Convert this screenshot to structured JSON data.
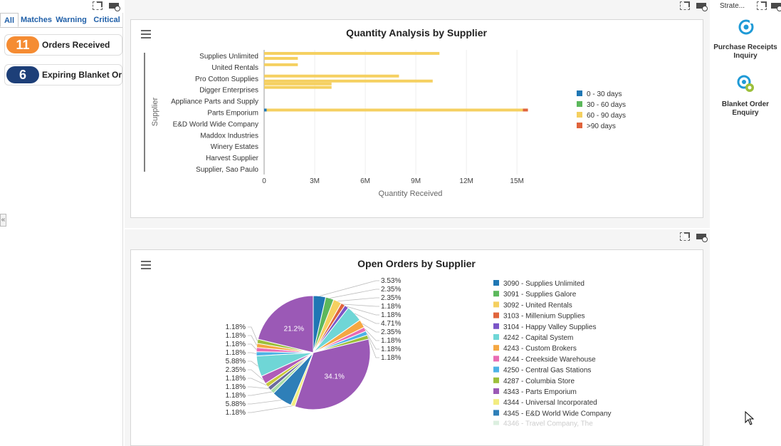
{
  "left_panel": {
    "tabs": [
      {
        "label": "All",
        "active": true
      },
      {
        "label": "Matches"
      },
      {
        "label": "Warning"
      },
      {
        "label": "Critical"
      }
    ],
    "kpis": [
      {
        "value": "11",
        "label": "Orders Received",
        "color": "#f58c33"
      },
      {
        "value": "6",
        "label": "Expiring Blanket Orders",
        "color": "#1d3f78"
      }
    ],
    "collapse_icon": "double-chevron-left-icon"
  },
  "right_panel": {
    "header": "Strate...",
    "apps": [
      {
        "label": "Purchase Receipts Inquiry",
        "icon": "purchase-receipts-icon"
      },
      {
        "label": "Blanket Order Enquiry",
        "icon": "blanket-order-icon"
      }
    ]
  },
  "chart_data": [
    {
      "type": "bar",
      "orientation": "horizontal",
      "stacked": true,
      "title": "Quantity Analysis by Supplier",
      "xlabel": "Quantity Received",
      "ylabel": "Supplier",
      "xlim": [
        0,
        15500000
      ],
      "xticks": [
        {
          "value": 0,
          "label": "0"
        },
        {
          "value": 3000000,
          "label": "3M"
        },
        {
          "value": 6000000,
          "label": "6M"
        },
        {
          "value": 9000000,
          "label": "9M"
        },
        {
          "value": 12000000,
          "label": "12M"
        },
        {
          "value": 15000000,
          "label": "15M"
        }
      ],
      "categories": [
        "Supplies Unlimited",
        "United Rentals",
        "Pro Cotton Supplies",
        "Digger Enterprises",
        "Appliance Parts and Supply",
        "Parts Emporium",
        "E&D World Wide Company",
        "Maddox Industries",
        "Winery Estates",
        "Harvest Supplier",
        "Supplier, Sao Paulo"
      ],
      "series": [
        {
          "name": "0 - 30 days",
          "color": "#1f77b4",
          "values": [
            0,
            0,
            0,
            0,
            0,
            150000,
            0,
            0,
            0,
            0,
            0
          ]
        },
        {
          "name": "30 - 60 days",
          "color": "#5cb85c",
          "values": [
            0,
            0,
            0,
            0,
            0,
            0,
            0,
            0,
            0,
            0,
            0
          ]
        },
        {
          "name": "60 - 90 days",
          "color": "#f5d060",
          "values": [
            10400000,
            2000000,
            8000000,
            4000000,
            0,
            15200000,
            0,
            0,
            0,
            0,
            0
          ]
        },
        {
          "name": ">90 days",
          "color": "#e0643c",
          "values": [
            0,
            0,
            0,
            0,
            0,
            300000,
            0,
            0,
            0,
            0,
            0
          ]
        }
      ],
      "sub_bars": [
        {
          "category": "Supplies Unlimited",
          "extra": [
            2000000
          ]
        },
        {
          "category": "United Rentals",
          "extra": []
        },
        {
          "category": "Pro Cotton Supplies",
          "extra": [
            10000000,
            4000000
          ]
        }
      ],
      "legend": "right",
      "grid": true
    },
    {
      "type": "pie",
      "title": "Open Orders by Supplier",
      "legend": "right",
      "slices": [
        {
          "name": "3090 - Supplies Unlimited",
          "value": 3.53,
          "label": "3.53%",
          "color": "#1f77b4"
        },
        {
          "name": "3091 - Supplies Galore",
          "value": 2.35,
          "label": "2.35%",
          "color": "#5cb85c"
        },
        {
          "name": "3092 - United Rentals",
          "value": 2.35,
          "label": "2.35%",
          "color": "#f5d060"
        },
        {
          "name": "3103 - Millenium Supplies",
          "value": 1.18,
          "label": "1.18%",
          "color": "#e0643c"
        },
        {
          "name": "3104 - Happy Valley Supplies",
          "value": 1.18,
          "label": "1.18%",
          "color": "#7b55c7"
        },
        {
          "name": "4242 - Capital System",
          "value": 4.71,
          "label": "4.71%",
          "color": "#6fd6d6"
        },
        {
          "name": "4243 - Custom Brokers",
          "value": 2.35,
          "label": "2.35%",
          "color": "#f5a742"
        },
        {
          "name": "4244 - Creekside Warehouse",
          "value": 1.18,
          "label": "1.18%",
          "color": "#e96bb3"
        },
        {
          "name": "4250 - Central Gas Stations",
          "value": 1.18,
          "label": "1.18%",
          "color": "#4db2e6"
        },
        {
          "name": "4287 - Columbia Store",
          "value": 1.18,
          "label": "1.18%",
          "color": "#9cbf3a"
        },
        {
          "name": "4343 - Parts Emporium",
          "value": 34.1,
          "label": "34.1%",
          "color": "#9b59b6"
        },
        {
          "name": "4344 - Universal Incorporated",
          "value": 1.18,
          "label": "1.18%",
          "color": "#f2ec80"
        },
        {
          "name": "4345 - E&D World Wide Company",
          "value": 5.88,
          "label": "5.88%",
          "color": "#2e7fb8"
        },
        {
          "name": "",
          "value": 1.18,
          "label": "1.18%",
          "color": "#a8dba8"
        },
        {
          "name": "",
          "value": 1.18,
          "label": "1.18%",
          "color": "#6b6b9e"
        },
        {
          "name": "",
          "value": 1.18,
          "label": "1.18%",
          "color": "#c9c93a"
        },
        {
          "name": "",
          "value": 2.35,
          "label": "2.35%",
          "color": "#b05bb8"
        },
        {
          "name": "",
          "value": 5.88,
          "label": "5.88%",
          "color": "#6fd6d6"
        },
        {
          "name": "",
          "value": 1.18,
          "label": "1.18%",
          "color": "#4db2e6"
        },
        {
          "name": "",
          "value": 1.18,
          "label": "1.18%",
          "color": "#e96bb3"
        },
        {
          "name": "",
          "value": 1.18,
          "label": "1.18%",
          "color": "#f5a742"
        },
        {
          "name": "",
          "value": 1.18,
          "label": "1.18%",
          "color": "#9cbf3a"
        },
        {
          "name": "",
          "value": 21.2,
          "label": "21.2%",
          "color": "#9b59b6"
        }
      ],
      "legend_faded_item": "4346 - Travel Company, The"
    }
  ]
}
